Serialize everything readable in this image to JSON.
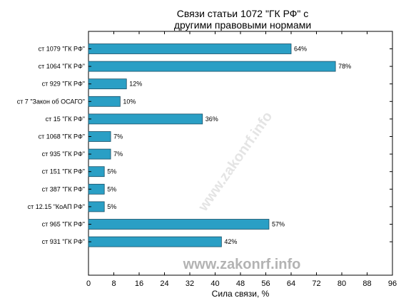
{
  "chart_data": {
    "type": "bar",
    "orientation": "horizontal",
    "title_lines": [
      "Связи статьи 1072 \"ГК РФ\" с",
      "другими правовыми нормами"
    ],
    "xlabel": "Сила связи, %",
    "ylabel": "",
    "xlim": [
      0,
      96
    ],
    "xticks": [
      0,
      8,
      16,
      24,
      32,
      40,
      48,
      56,
      64,
      72,
      80,
      88,
      96
    ],
    "grid": false,
    "categories": [
      "ст 1079 \"ГК РФ\"",
      "ст 1064 \"ГК РФ\"",
      "ст 929 \"ГК РФ\"",
      "ст 7 \"Закон об ОСАГО\"",
      "ст 15 \"ГК РФ\"",
      "ст 1068 \"ГК РФ\"",
      "ст 935 \"ГК РФ\"",
      "ст 151 \"ГК РФ\"",
      "ст 387 \"ГК РФ\"",
      "ст 12.15 \"КоАП РФ\"",
      "ст 965 \"ГК РФ\"",
      "ст 931 \"ГК РФ\""
    ],
    "values": [
      64,
      78,
      12,
      10,
      36,
      7,
      7,
      5,
      5,
      5,
      57,
      42
    ],
    "value_labels": [
      "64%",
      "78%",
      "12%",
      "10%",
      "36%",
      "7%",
      "7%",
      "5%",
      "5%",
      "5%",
      "57%",
      "42%"
    ],
    "bar_color": "#2a9fc5",
    "bar_edge_color": "#1a4f66"
  },
  "watermark": "www.zakonrf.info",
  "watermark_diagonal": "www.zakonrf.info"
}
